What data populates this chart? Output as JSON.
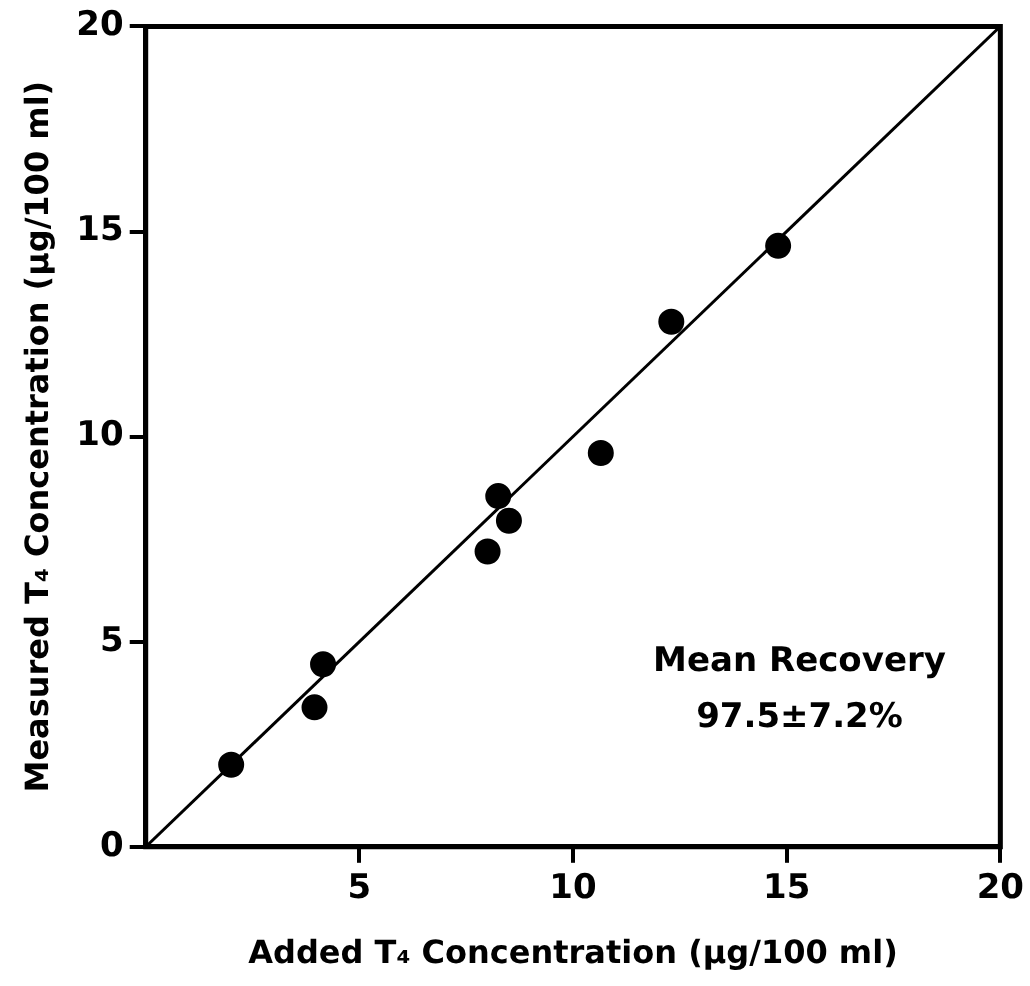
{
  "chart_data": {
    "type": "scatter",
    "xlabel": "Added T₄ Concentration (μg/100 ml)",
    "ylabel": "Measured T₄ Concentration (μg/100 ml)",
    "annotations": [
      "Mean Recovery",
      "97.5±7.2%"
    ],
    "series": [
      {
        "type": "scatter",
        "color": "#000000",
        "marker": "circle",
        "x": [
          2.0,
          3.95,
          4.15,
          8.0,
          8.25,
          8.5,
          10.65,
          12.3,
          14.8
        ],
        "values": [
          2.0,
          3.4,
          4.45,
          7.2,
          8.55,
          7.95,
          9.6,
          12.8,
          14.65
        ]
      },
      {
        "type": "line",
        "color": "#000000",
        "marker": "none",
        "line_style": "solid",
        "x": [
          0,
          20
        ],
        "values": [
          0,
          20
        ]
      }
    ],
    "xlim": [
      0,
      20
    ],
    "ylim": [
      0,
      20
    ],
    "xticks": [
      5,
      10,
      15,
      20
    ],
    "yticks": [
      0,
      5,
      10,
      15,
      20
    ],
    "grid": false,
    "legend": false
  }
}
